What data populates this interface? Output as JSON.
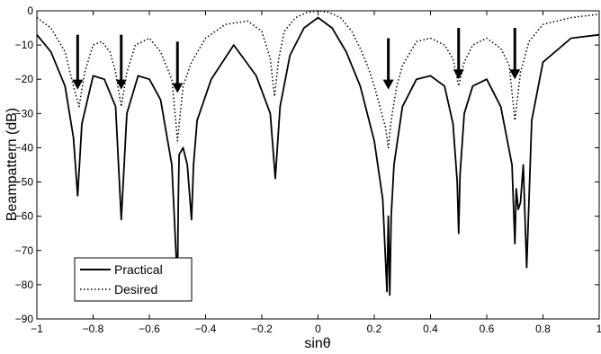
{
  "chart_data": {
    "type": "line",
    "xlabel": "sinθ",
    "ylabel": "Beampattern (dB)",
    "xlim": [
      -1,
      1
    ],
    "ylim": [
      -90,
      0
    ],
    "xticks": [
      -1,
      -0.8,
      -0.6,
      -0.4,
      -0.2,
      0,
      0.2,
      0.4,
      0.6,
      0.8,
      1
    ],
    "xtick_labels": [
      "−1",
      "−0.8",
      "−0.6",
      "−0.4",
      "−0.2",
      "0",
      "0.2",
      "0.4",
      "0.6",
      "0.8",
      "1"
    ],
    "yticks": [
      0,
      -10,
      -20,
      -30,
      -40,
      -50,
      -60,
      -70,
      -80,
      -90
    ],
    "ytick_labels": [
      "0",
      "−10",
      "−20",
      "−30",
      "−40",
      "−50",
      "−60",
      "−70",
      "−80",
      "−90"
    ],
    "grid": false,
    "legend_position": "bottom-left",
    "series": [
      {
        "name": "Practical",
        "style": "solid",
        "color": "#000000",
        "x": [
          -1.0,
          -0.95,
          -0.9,
          -0.87,
          -0.855,
          -0.84,
          -0.8,
          -0.76,
          -0.72,
          -0.7,
          -0.68,
          -0.64,
          -0.6,
          -0.56,
          -0.52,
          -0.5,
          -0.497,
          -0.494,
          -0.48,
          -0.465,
          -0.45,
          -0.443,
          -0.43,
          -0.38,
          -0.3,
          -0.22,
          -0.17,
          -0.152,
          -0.135,
          -0.1,
          -0.05,
          0.0,
          0.05,
          0.1,
          0.15,
          0.2,
          0.23,
          0.245,
          0.25,
          0.255,
          0.26,
          0.27,
          0.3,
          0.35,
          0.4,
          0.45,
          0.48,
          0.495,
          0.5,
          0.505,
          0.52,
          0.55,
          0.6,
          0.65,
          0.69,
          0.7,
          0.705,
          0.712,
          0.72,
          0.73,
          0.742,
          0.76,
          0.8,
          0.9,
          1.0
        ],
        "y": [
          -7,
          -12,
          -22,
          -37,
          -54,
          -33,
          -19,
          -20,
          -28,
          -61,
          -30,
          -19,
          -20,
          -26,
          -45,
          -80,
          -55,
          -42,
          -40,
          -45,
          -61,
          -45,
          -32,
          -20,
          -10,
          -19,
          -30,
          -49,
          -28,
          -13,
          -5,
          -2,
          -5,
          -12,
          -22,
          -38,
          -55,
          -82,
          -60,
          -83,
          -60,
          -45,
          -28,
          -20,
          -19,
          -22,
          -33,
          -50,
          -65,
          -48,
          -30,
          -22,
          -20,
          -28,
          -45,
          -68,
          -52,
          -58,
          -56,
          -45,
          -75,
          -32,
          -15,
          -8,
          -7
        ]
      },
      {
        "name": "Desired",
        "style": "dotted",
        "color": "#000000",
        "x": [
          -1.0,
          -0.95,
          -0.9,
          -0.87,
          -0.85,
          -0.83,
          -0.8,
          -0.77,
          -0.74,
          -0.72,
          -0.7,
          -0.68,
          -0.65,
          -0.6,
          -0.56,
          -0.52,
          -0.5,
          -0.48,
          -0.45,
          -0.4,
          -0.33,
          -0.25,
          -0.2,
          -0.17,
          -0.155,
          -0.14,
          -0.12,
          -0.08,
          -0.04,
          0.0,
          0.04,
          0.08,
          0.12,
          0.15,
          0.18,
          0.2,
          0.22,
          0.24,
          0.25,
          0.26,
          0.28,
          0.3,
          0.35,
          0.4,
          0.45,
          0.48,
          0.5,
          0.52,
          0.55,
          0.6,
          0.65,
          0.68,
          0.7,
          0.72,
          0.75,
          0.8,
          0.9,
          1.0
        ],
        "y": [
          -2,
          -5,
          -12,
          -22,
          -28,
          -18,
          -10,
          -9,
          -12,
          -18,
          -28,
          -18,
          -10,
          -8,
          -12,
          -20,
          -38,
          -22,
          -15,
          -8,
          -4,
          -3,
          -6,
          -14,
          -25,
          -14,
          -6,
          -2,
          -0.5,
          0,
          -0.5,
          -2,
          -6,
          -11,
          -17,
          -22,
          -28,
          -34,
          -40,
          -32,
          -22,
          -16,
          -9,
          -8,
          -10,
          -14,
          -22,
          -15,
          -10,
          -8,
          -11,
          -16,
          -32,
          -18,
          -9,
          -4,
          -2,
          -1
        ]
      }
    ],
    "annotations": [
      {
        "type": "arrow",
        "direction": "down",
        "x": -0.855,
        "from_y": -7,
        "to_y": -23
      },
      {
        "type": "arrow",
        "direction": "down",
        "x": -0.7,
        "from_y": -7,
        "to_y": -23
      },
      {
        "type": "arrow",
        "direction": "down",
        "x": -0.5,
        "from_y": -9,
        "to_y": -24
      },
      {
        "type": "arrow",
        "direction": "down",
        "x": 0.25,
        "from_y": -8,
        "to_y": -23
      },
      {
        "type": "arrow",
        "direction": "down",
        "x": 0.5,
        "from_y": -5,
        "to_y": -20
      },
      {
        "type": "arrow",
        "direction": "down",
        "x": 0.7,
        "from_y": -5,
        "to_y": -20
      }
    ]
  }
}
